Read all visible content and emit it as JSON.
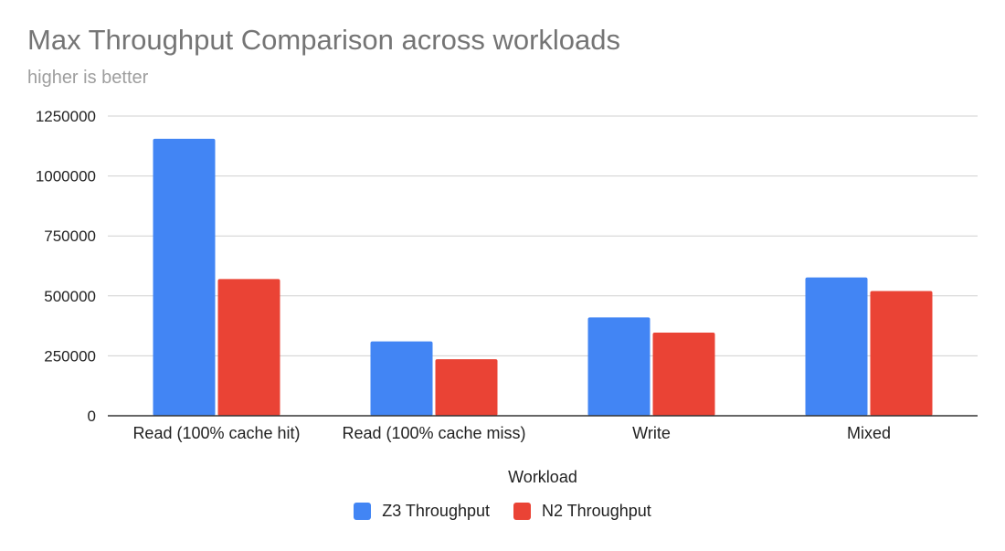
{
  "chart_data": {
    "type": "bar",
    "title": "Max Throughput Comparison across workloads",
    "subtitle": "higher is better",
    "xlabel": "Workload",
    "ylabel": "",
    "categories": [
      "Read (100% cache hit)",
      "Read (100% cache miss)",
      "Write",
      "Mixed"
    ],
    "series": [
      {
        "name": "Z3 Throughput",
        "color": "#4285f4",
        "values": [
          1155000,
          310000,
          410000,
          577000
        ]
      },
      {
        "name": "N2 Throughput",
        "color": "#ea4335",
        "values": [
          570000,
          236000,
          347000,
          520000
        ]
      }
    ],
    "ylim": [
      0,
      1250000
    ],
    "yticks": [
      "0",
      "250000",
      "500000",
      "750000",
      "1000000",
      "1250000"
    ],
    "grid": true,
    "legend_position": "bottom"
  }
}
